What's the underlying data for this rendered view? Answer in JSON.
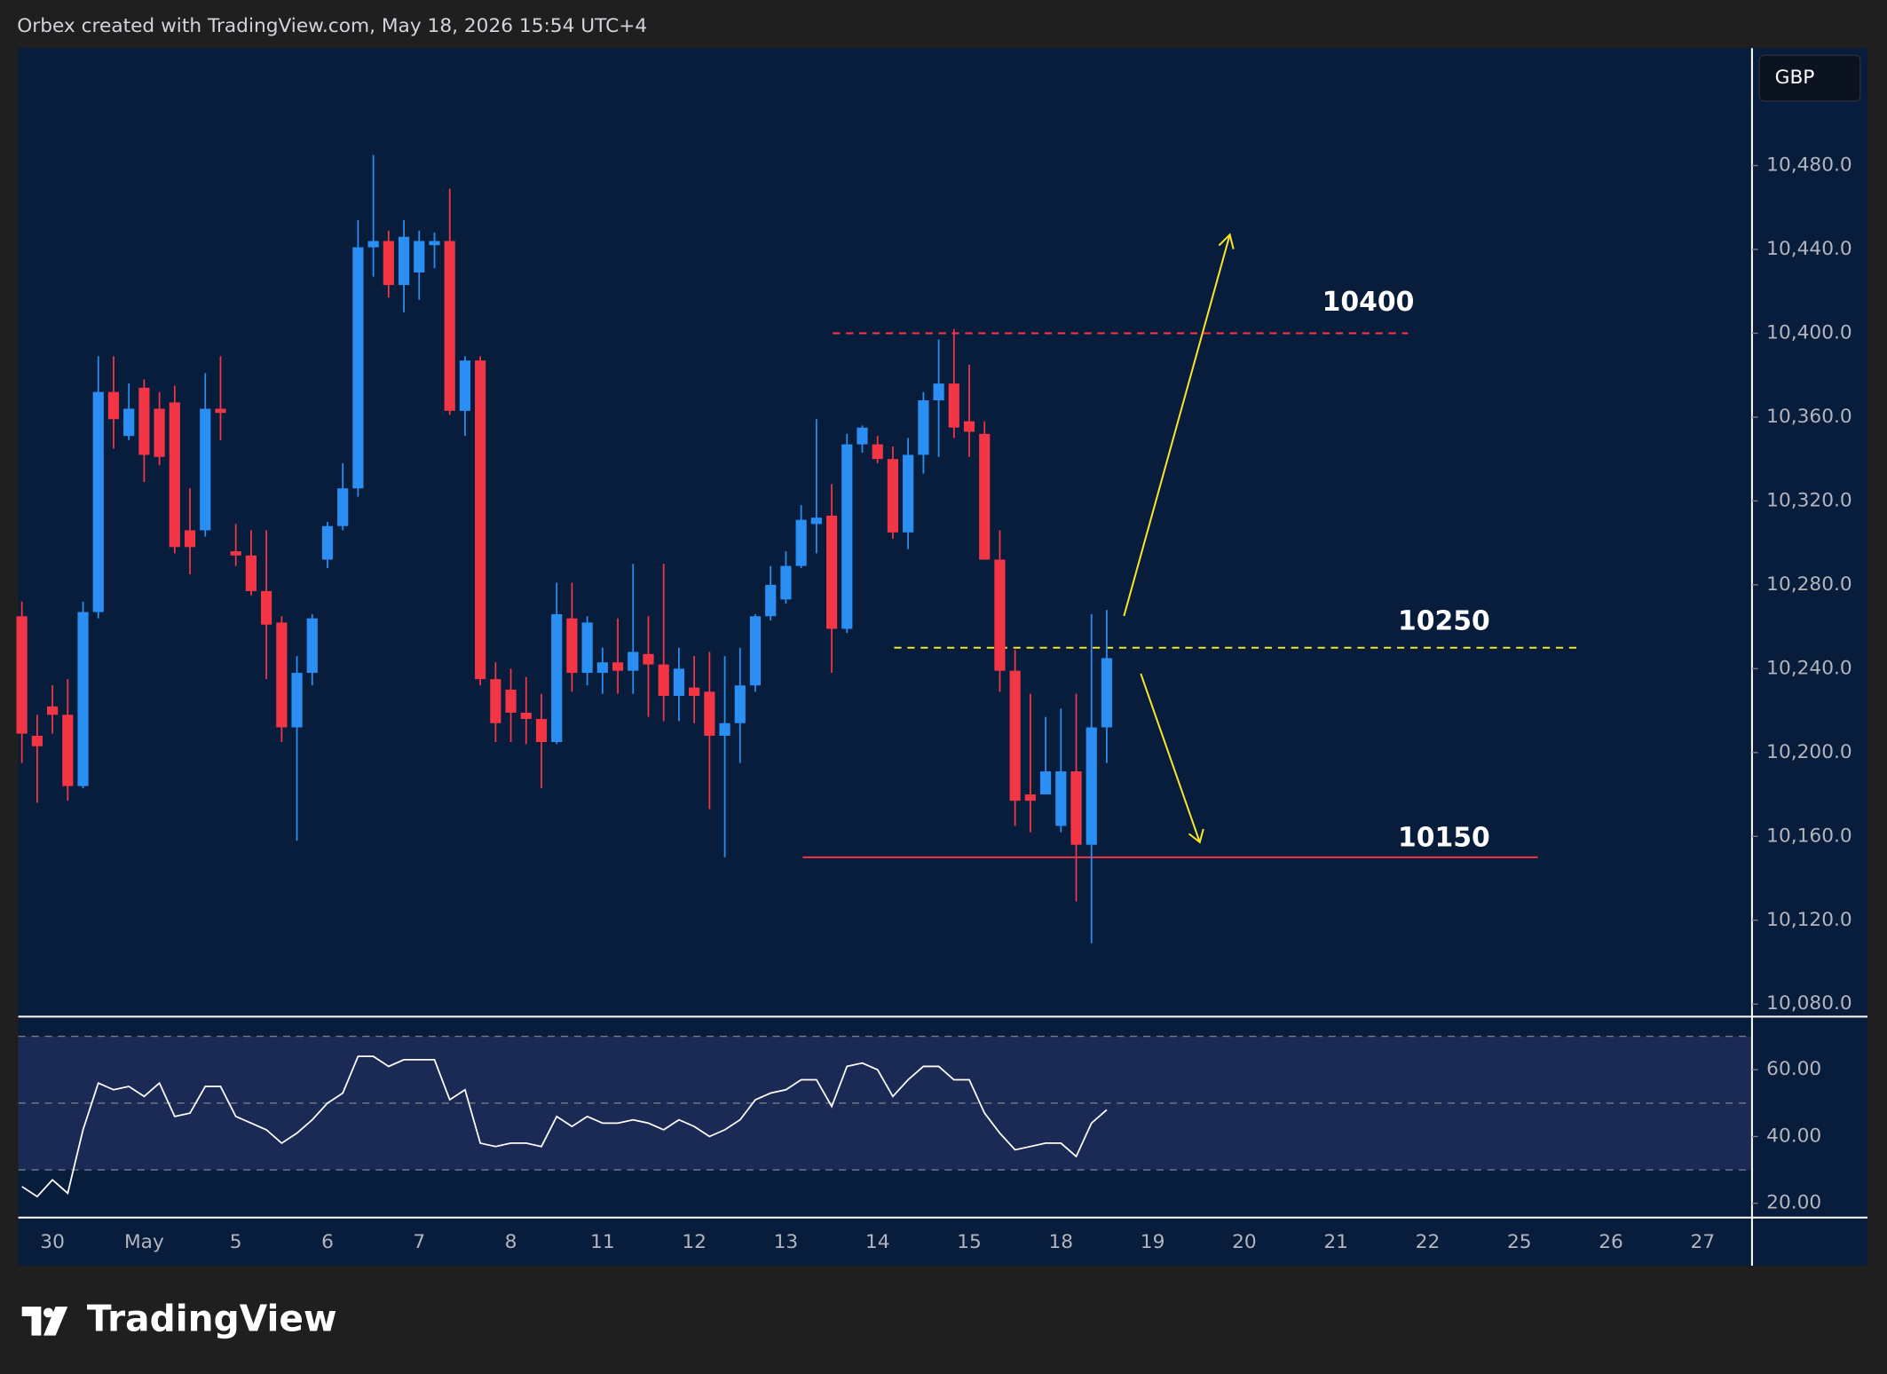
{
  "header": "Orbex created with TradingView.com, May 18, 2026 15:54 UTC+4",
  "brand": "TradingView",
  "chart_data": [
    {
      "type": "candlestick",
      "currency": "GBP",
      "open": [
        10265,
        10208,
        10222,
        10218,
        10184,
        10267,
        10372,
        10351,
        10374,
        10364,
        10367,
        10306,
        10306,
        10364,
        10296,
        10294,
        10277,
        10262,
        10212,
        10238,
        10292,
        10308,
        10326,
        10441,
        10444,
        10423,
        10429,
        10442,
        10444,
        10363,
        10387,
        10235,
        10230,
        10219,
        10216,
        10205,
        10264,
        10238,
        10238,
        10243,
        10239,
        10247,
        10242,
        10227,
        10231,
        10229,
        10208,
        10214,
        10232,
        10265,
        10273,
        10289,
        10309,
        10313,
        10259,
        10347,
        10347,
        10340,
        10305,
        10342,
        10368,
        10376,
        10358,
        10352,
        10292,
        10239,
        10180,
        10180,
        10165,
        10191,
        10156,
        10212
      ],
      "high": [
        10272,
        10218,
        10232,
        10235,
        10272,
        10389,
        10389,
        10376,
        10378,
        10372,
        10375,
        10326,
        10381,
        10389,
        10309,
        10306,
        10306,
        10265,
        10246,
        10266,
        10310,
        10338,
        10454,
        10485,
        10449,
        10454,
        10449,
        10448,
        10469,
        10389,
        10389,
        10243,
        10240,
        10236,
        10228,
        10281,
        10281,
        10265,
        10250,
        10264,
        10290,
        10265,
        10290,
        10250,
        10246,
        10248,
        10246,
        10250,
        10266,
        10289,
        10296,
        10318,
        10359,
        10328,
        10352,
        10356,
        10351,
        10346,
        10350,
        10372,
        10397,
        10402,
        10385,
        10358,
        10306,
        10249,
        10228,
        10217,
        10221,
        10228,
        10266,
        10268
      ],
      "high_note": null,
      "low": [
        10195,
        10176,
        10209,
        10177,
        10183,
        10264,
        10345,
        10349,
        10329,
        10337,
        10295,
        10285,
        10303,
        10349,
        10289,
        10275,
        10235,
        10205,
        10158,
        10232,
        10288,
        10306,
        10322,
        10427,
        10417,
        10410,
        10416,
        10431,
        10361,
        10351,
        10232,
        10205,
        10205,
        10204,
        10183,
        10204,
        10229,
        10232,
        10228,
        10228,
        10228,
        10217,
        10215,
        10215,
        10214,
        10173,
        10150,
        10195,
        10229,
        10263,
        10271,
        10288,
        10295,
        10238,
        10257,
        10343,
        10338,
        10302,
        10297,
        10333,
        10341,
        10350,
        10341,
        10292,
        10229,
        10165,
        10162,
        10182,
        10162,
        10129,
        10109,
        10195
      ],
      "close": [
        10209,
        10203,
        10218,
        10184,
        10267,
        10372,
        10359,
        10364,
        10342,
        10341,
        10298,
        10298,
        10364,
        10362,
        10294,
        10277,
        10261,
        10212,
        10238,
        10264,
        10308,
        10326,
        10441,
        10444,
        10423,
        10446,
        10444,
        10444,
        10363,
        10387,
        10235,
        10214,
        10219,
        10216,
        10205,
        10266,
        10238,
        10262,
        10243,
        10239,
        10248,
        10242,
        10227,
        10240,
        10227,
        10208,
        10214,
        10232,
        10265,
        10280,
        10289,
        10311,
        10312,
        10259,
        10347,
        10355,
        10340,
        10305,
        10342,
        10368,
        10376,
        10355,
        10353,
        10292,
        10239,
        10177,
        10177,
        10191,
        10191,
        10156,
        10212,
        10245
      ],
      "up_color": "#2a8ef2",
      "down_color": "#f23645",
      "ylim": [
        10074,
        10536
      ],
      "yticks": [
        {
          "value": 10080,
          "label": "10,080.0"
        },
        {
          "value": 10120,
          "label": "10,120.0"
        },
        {
          "value": 10160,
          "label": "10,160.0"
        },
        {
          "value": 10200,
          "label": "10,200.0"
        },
        {
          "value": 10240,
          "label": "10,240.0"
        },
        {
          "value": 10280,
          "label": "10,280.0"
        },
        {
          "value": 10320,
          "label": "10,320.0"
        },
        {
          "value": 10360,
          "label": "10,360.0"
        },
        {
          "value": 10400,
          "label": "10,400.0"
        },
        {
          "value": 10440,
          "label": "10,440.0"
        },
        {
          "value": 10480,
          "label": "10,480.0"
        }
      ],
      "x_labels": [
        "30",
        "May",
        "5",
        "6",
        "7",
        "8",
        "11",
        "12",
        "13",
        "14",
        "15",
        "18",
        "19",
        "20",
        "21",
        "22",
        "25",
        "26",
        "27"
      ],
      "levels": [
        {
          "value": 10400,
          "color": "#f23645",
          "style": "dashed"
        },
        {
          "value": 10250,
          "color": "#f5e52a",
          "style": "dashed"
        },
        {
          "value": 10150,
          "color": "#f23645",
          "style": "solid"
        }
      ]
    },
    {
      "type": "line",
      "color": "#ffffff",
      "values": [
        25,
        22,
        27,
        23,
        42,
        56,
        54,
        55,
        52,
        56,
        46,
        47,
        55,
        55,
        46,
        44,
        42,
        38,
        41,
        45,
        50,
        53,
        64,
        64,
        61,
        63,
        63,
        63,
        51,
        54,
        38,
        37,
        38,
        38,
        37,
        46,
        43,
        46,
        44,
        44,
        45,
        44,
        42,
        45,
        43,
        40,
        42,
        45,
        51,
        53,
        54,
        57,
        57,
        49,
        61,
        62,
        60,
        52,
        57,
        61,
        61,
        57,
        57,
        47,
        41,
        36,
        37,
        38,
        38,
        34,
        44,
        48
      ],
      "ylim": [
        15.7,
        75.9
      ],
      "bands": [
        70,
        50,
        30
      ],
      "yticks": [
        {
          "value": 20,
          "label": "20.00"
        },
        {
          "value": 40,
          "label": "40.00"
        },
        {
          "value": 60,
          "label": "60.00"
        }
      ]
    }
  ]
}
